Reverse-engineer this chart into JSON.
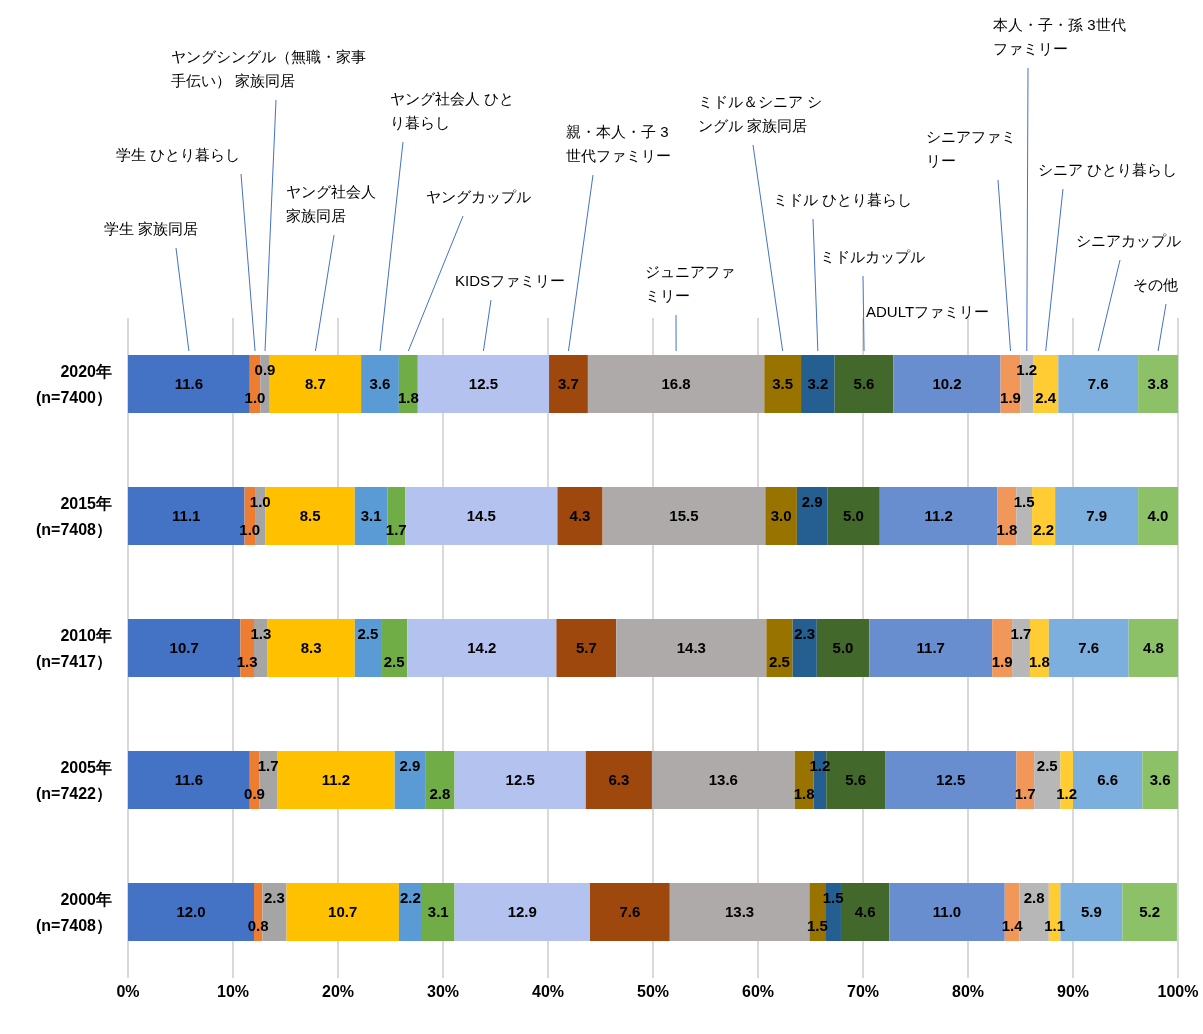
{
  "chart_data": {
    "type": "bar",
    "orientation": "horizontal",
    "stacked": true,
    "grid": "x",
    "legend": false,
    "categories": [
      "2020年\n(n=7400）",
      "2015年\n(n=7408）",
      "2010年\n(n=7417）",
      "2005年\n(n=7422）",
      "2000年\n(n=7408）"
    ],
    "xlim": [
      0,
      100
    ],
    "xticks": [
      {
        "value": 0,
        "label": "0%"
      },
      {
        "value": 10,
        "label": "10%"
      },
      {
        "value": 20,
        "label": "20%"
      },
      {
        "value": 30,
        "label": "30%"
      },
      {
        "value": 40,
        "label": "40%"
      },
      {
        "value": 50,
        "label": "50%"
      },
      {
        "value": 60,
        "label": "60%"
      },
      {
        "value": 70,
        "label": "70%"
      },
      {
        "value": 80,
        "label": "80%"
      },
      {
        "value": 90,
        "label": "90%"
      },
      {
        "value": 100,
        "label": "100%"
      }
    ],
    "series": [
      {
        "name": "学生 家族同居",
        "color": "#4472c4",
        "values": [
          11.6,
          11.1,
          10.7,
          11.6,
          12.0
        ],
        "value_labels": [
          "11.6",
          "11.1",
          "10.7",
          "11.6",
          "12.0"
        ]
      },
      {
        "name": "学生 ひとり暮らし",
        "color": "#ed7d31",
        "values": [
          1.0,
          1.0,
          1.3,
          0.9,
          0.8
        ],
        "value_labels": [
          "1.0",
          "1.0",
          "1.3",
          "0.9",
          "0.8"
        ]
      },
      {
        "name": "ヤングシングル（無職・家事手伝い） 家族同居",
        "color": "#a5a5a5",
        "values": [
          0.9,
          1.0,
          1.3,
          1.7,
          2.3
        ],
        "value_labels": [
          "0.9",
          "1.0",
          "1.3",
          "1.7",
          "2.3"
        ]
      },
      {
        "name": "ヤング社会人家族同居",
        "color": "#ffc000",
        "values": [
          8.7,
          8.5,
          8.3,
          11.2,
          10.7
        ],
        "value_labels": [
          "8.7",
          "8.5",
          "8.3",
          "11.2",
          "10.7"
        ]
      },
      {
        "name": "ヤング社会人 ひとり暮らし",
        "color": "#5b9bd5",
        "values": [
          3.6,
          3.1,
          2.5,
          2.9,
          2.2
        ],
        "value_labels": [
          "3.6",
          "3.1",
          "2.5",
          "2.9",
          "2.2"
        ]
      },
      {
        "name": "ヤングカップル",
        "color": "#70ad47",
        "values": [
          1.8,
          1.7,
          2.5,
          2.8,
          3.1
        ],
        "value_labels": [
          "1.8",
          "1.7",
          "2.5",
          "2.8",
          "3.1"
        ]
      },
      {
        "name": "KIDSファミリー",
        "color": "#b4c2ef",
        "values": [
          12.5,
          14.5,
          14.2,
          12.5,
          12.9
        ],
        "value_labels": [
          "12.5",
          "14.5",
          "14.2",
          "12.5",
          "12.9"
        ]
      },
      {
        "name": "親・本人・子 3世代ファミリー",
        "color": "#9e480e",
        "values": [
          3.7,
          4.3,
          5.7,
          6.3,
          7.6
        ],
        "value_labels": [
          "3.7",
          "4.3",
          "5.7",
          "6.3",
          "7.6"
        ]
      },
      {
        "name": "ジュニアファミリー",
        "color": "#afaaaa",
        "values": [
          16.8,
          15.5,
          14.3,
          13.6,
          13.3
        ],
        "value_labels": [
          "16.8",
          "15.5",
          "14.3",
          "13.6",
          "13.3"
        ]
      },
      {
        "name": "ミドル＆シニア シングル 家族同居",
        "color": "#997300",
        "values": [
          3.5,
          3.0,
          2.5,
          1.8,
          1.5
        ],
        "value_labels": [
          "3.5",
          "3.0",
          "2.5",
          "1.8",
          "1.5"
        ]
      },
      {
        "name": "ミドル ひとり暮らし",
        "color": "#255e91",
        "values": [
          3.2,
          2.9,
          2.3,
          1.2,
          1.5
        ],
        "value_labels": [
          "3.2",
          "2.9",
          "2.3",
          "1.2",
          "1.5"
        ]
      },
      {
        "name": "ミドルカップル",
        "color": "#43682b",
        "values": [
          5.6,
          5.0,
          5.0,
          5.6,
          4.6
        ],
        "value_labels": [
          "5.6",
          "5.0",
          "5.0",
          "5.6",
          "4.6"
        ]
      },
      {
        "name": "ADULTファミリー",
        "color": "#698ed0",
        "values": [
          10.2,
          11.2,
          11.7,
          12.5,
          11.0
        ],
        "value_labels": [
          "10.2",
          "11.2",
          "11.7",
          "12.5",
          "11.0"
        ]
      },
      {
        "name": "シニアファミリー",
        "color": "#f1975a",
        "values": [
          1.9,
          1.8,
          1.9,
          1.7,
          1.4
        ],
        "value_labels": [
          "1.9",
          "1.8",
          "1.9",
          "1.7",
          "1.4"
        ]
      },
      {
        "name": "本人・子・孫 3世代ファミリー",
        "color": "#b7b7b7",
        "values": [
          1.2,
          1.5,
          1.7,
          2.5,
          2.8
        ],
        "value_labels": [
          "1.2",
          "1.5",
          "1.7",
          "2.5",
          "2.8"
        ]
      },
      {
        "name": "シニア ひとり暮らし",
        "color": "#ffcd33",
        "values": [
          2.4,
          2.2,
          1.8,
          1.2,
          1.1
        ],
        "value_labels": [
          "2.4",
          "2.2",
          "1.8",
          "1.2",
          "1.1"
        ]
      },
      {
        "name": "シニアカップル",
        "color": "#7cafdd",
        "values": [
          7.6,
          7.9,
          7.6,
          6.6,
          5.9
        ],
        "value_labels": [
          "7.6",
          "7.9",
          "7.6",
          "6.6",
          "5.9"
        ]
      },
      {
        "name": "その他",
        "color": "#8cc168",
        "values": [
          3.8,
          4.0,
          4.8,
          3.6,
          5.2
        ],
        "value_labels": [
          "3.8",
          "4.0",
          "4.8",
          "3.6",
          "5.2"
        ]
      }
    ]
  }
}
